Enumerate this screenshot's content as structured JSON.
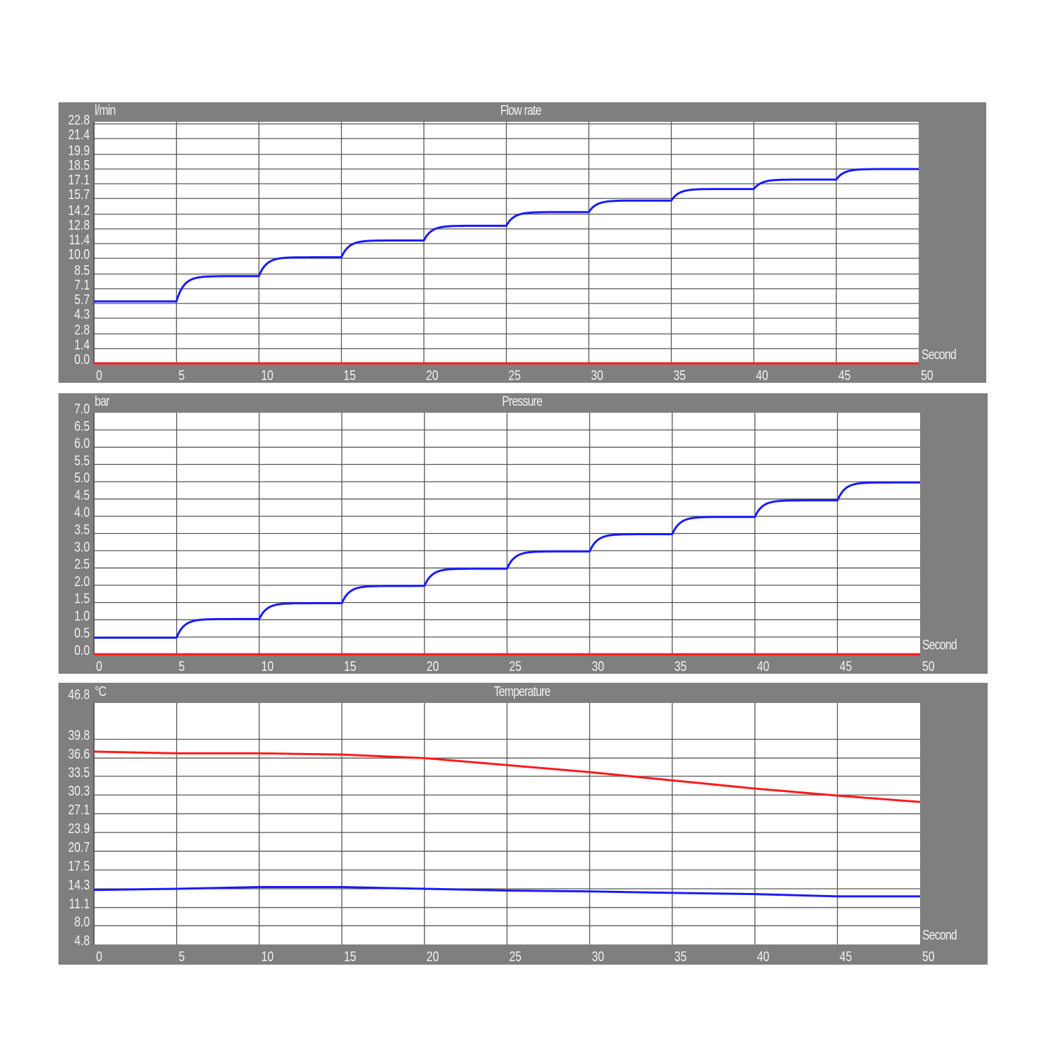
{
  "chart_data": [
    {
      "type": "line",
      "title": "Flow rate",
      "ylabel": "l/min",
      "xlabel": "Second",
      "xlim": [
        0,
        50
      ],
      "ylim": [
        0,
        23.0
      ],
      "x_ticks": [
        "0",
        "5",
        "10",
        "15",
        "20",
        "25",
        "30",
        "35",
        "40",
        "45",
        "50"
      ],
      "y_ticks": [
        "0.0",
        "1.4",
        "2.8",
        "4.3",
        "5.7",
        "7.1",
        "8.5",
        "10.0",
        "11.4",
        "12.8",
        "14.2",
        "15.7",
        "17.1",
        "18.5",
        "19.9",
        "21.4",
        "22.8"
      ],
      "grid": true,
      "series": [
        {
          "color": "#1a1aff",
          "step_times": [
            0,
            5,
            10,
            15,
            20,
            25,
            30,
            35,
            40,
            45
          ],
          "values": [
            5.9,
            8.3,
            10.1,
            11.7,
            13.1,
            14.4,
            15.5,
            16.6,
            17.5,
            18.5
          ]
        },
        {
          "color": "#ff1a1a",
          "step_times": [
            0
          ],
          "values": [
            0.0
          ]
        }
      ]
    },
    {
      "type": "line",
      "title": "Pressure",
      "ylabel": "bar",
      "xlabel": "Second",
      "xlim": [
        0,
        50
      ],
      "ylim": [
        0,
        7.0
      ],
      "x_ticks": [
        "0",
        "5",
        "10",
        "15",
        "20",
        "25",
        "30",
        "35",
        "40",
        "45",
        "50"
      ],
      "y_ticks": [
        "0.0",
        "0.5",
        "1.0",
        "1.5",
        "2.0",
        "2.5",
        "3.0",
        "3.5",
        "4.0",
        "4.5",
        "5.0",
        "5.5",
        "6.0",
        "6.5",
        "7.0"
      ],
      "grid": true,
      "series": [
        {
          "color": "#1a1aff",
          "step_times": [
            0,
            5,
            10,
            15,
            20,
            25,
            30,
            35,
            40,
            45
          ],
          "values": [
            0.48,
            1.02,
            1.48,
            1.98,
            2.48,
            2.98,
            3.48,
            3.98,
            4.46,
            4.98
          ]
        },
        {
          "color": "#ff1a1a",
          "step_times": [
            0
          ],
          "values": [
            0.0
          ]
        }
      ]
    },
    {
      "type": "line",
      "title": "Temperature",
      "ylabel": "°C",
      "xlabel": "Second",
      "xlim": [
        0,
        50
      ],
      "ylim": [
        4.8,
        46.0
      ],
      "x_ticks": [
        "0",
        "5",
        "10",
        "15",
        "20",
        "25",
        "30",
        "35",
        "40",
        "45",
        "50"
      ],
      "y_ticks": [
        "4.8",
        "8.0",
        "11.1",
        "14.3",
        "17.5",
        "20.7",
        "23.9",
        "27.1",
        "30.3",
        "33.5",
        "36.6",
        "39.8",
        "46.8"
      ],
      "grid": true,
      "series": [
        {
          "color": "#ff1a1a",
          "x": [
            0,
            5,
            10,
            15,
            20,
            25,
            30,
            35,
            40,
            45,
            50
          ],
          "values": [
            37.7,
            37.4,
            37.4,
            37.2,
            36.6,
            35.4,
            34.2,
            32.8,
            31.4,
            30.2,
            29.1
          ]
        },
        {
          "color": "#1a1aff",
          "x": [
            0,
            5,
            10,
            15,
            20,
            25,
            30,
            35,
            40,
            45,
            50
          ],
          "values": [
            14.1,
            14.3,
            14.6,
            14.6,
            14.3,
            14.0,
            13.85,
            13.6,
            13.4,
            13.0,
            13.0
          ]
        }
      ]
    }
  ]
}
